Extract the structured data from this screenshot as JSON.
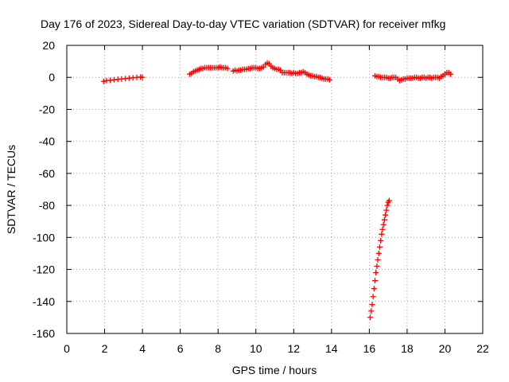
{
  "chart_data": {
    "type": "scatter",
    "title": "Day 176 of 2023, Sidereal Day-to-day VTEC variation (SDTVAR) for receiver mfkg",
    "xlabel": "GPS time / hours",
    "ylabel": "SDTVAR / TECUs",
    "xlim": [
      0,
      22
    ],
    "ylim": [
      -160,
      20
    ],
    "xticks": [
      0,
      2,
      4,
      6,
      8,
      10,
      12,
      14,
      16,
      18,
      20,
      22
    ],
    "yticks": [
      20,
      0,
      -20,
      -40,
      -60,
      -80,
      -100,
      -120,
      -140,
      -160
    ],
    "grid": true,
    "legend": "none",
    "marker": "+",
    "color": "#ff0000",
    "series": [
      {
        "name": "SDTVAR",
        "segments": [
          {
            "x": [
              1.95,
              2.1,
              2.3,
              2.5,
              2.7,
              2.9,
              3.1,
              3.3,
              3.5,
              3.7,
              3.9,
              4.0
            ],
            "y": [
              -2.5,
              -2,
              -1.8,
              -1.5,
              -1.2,
              -1,
              -0.8,
              -0.5,
              -0.3,
              0,
              0.2,
              0
            ]
          },
          {
            "x": [
              6.5,
              6.6,
              6.7,
              6.8,
              6.9,
              7.0,
              7.1,
              7.2,
              7.3,
              7.4,
              7.5,
              7.6,
              7.7,
              7.8,
              7.9,
              8.0,
              8.1,
              8.2,
              8.3,
              8.4,
              8.5
            ],
            "y": [
              2,
              2.5,
              3.5,
              4,
              4.5,
              5,
              5.5,
              5.5,
              6,
              6,
              6,
              6,
              6,
              6,
              6,
              6,
              6.5,
              6,
              6,
              6,
              5.5
            ]
          },
          {
            "x": [
              8.8,
              8.9,
              9.0,
              9.1,
              9.2,
              9.3,
              9.4,
              9.5,
              9.6,
              9.7,
              9.8,
              9.9,
              10.0,
              10.1,
              10.2,
              10.3,
              10.4,
              10.5,
              10.6,
              10.7,
              10.8,
              10.9,
              11.0,
              11.1,
              11.2,
              11.3,
              11.4,
              11.5,
              11.6,
              11.7,
              11.8,
              11.9,
              12.0,
              12.1,
              12.2,
              12.3,
              12.4,
              12.5,
              12.6,
              12.7,
              12.8,
              12.9,
              13.0,
              13.1,
              13.2,
              13.3,
              13.4,
              13.5,
              13.6,
              13.7,
              13.8,
              13.9
            ],
            "y": [
              4,
              4.5,
              4,
              4.5,
              4.5,
              5,
              5,
              5,
              5.5,
              5.5,
              6,
              6,
              6,
              5.5,
              5.5,
              6,
              6.5,
              8,
              9,
              8.5,
              7,
              6,
              5.5,
              5,
              5,
              4.5,
              3,
              3,
              3,
              3,
              3,
              2.5,
              3,
              2.5,
              2.5,
              3,
              3,
              3.5,
              3,
              2,
              1.5,
              1,
              1,
              0.5,
              0.5,
              0,
              0,
              -0.5,
              -1,
              -1,
              -1,
              -1.5
            ]
          },
          {
            "x": [
              16.3,
              16.4,
              16.5,
              16.6,
              16.7,
              16.8,
              16.9,
              17.0,
              17.1,
              17.2,
              17.3,
              17.4,
              17.5,
              17.6,
              17.7,
              17.8,
              17.9,
              18.0,
              18.1,
              18.2,
              18.3,
              18.4,
              18.5,
              18.6,
              18.7,
              18.8,
              18.9,
              19.0,
              19.1,
              19.2,
              19.3,
              19.4,
              19.5,
              19.6,
              19.7,
              19.8,
              19.9,
              20.0,
              20.1,
              20.2,
              20.3
            ],
            "y": [
              1,
              0.5,
              0.5,
              0,
              0,
              0,
              0,
              -0.5,
              -0.5,
              0,
              0,
              0,
              -1,
              -2,
              -1.5,
              -1,
              -1,
              -0.5,
              -0.5,
              -0.5,
              -0.5,
              0,
              0,
              -0.5,
              -0.5,
              0,
              0,
              -0.5,
              0,
              0,
              -0.5,
              0,
              0,
              0,
              -0.5,
              0.5,
              1,
              2,
              3,
              3,
              2
            ]
          },
          {
            "x": [
              16.05,
              16.1,
              16.15,
              16.2,
              16.25,
              16.3,
              16.35,
              16.4,
              16.45,
              16.5,
              16.55,
              16.6,
              16.65,
              16.7,
              16.75,
              16.8,
              16.85,
              16.9,
              16.95,
              17.0,
              17.05
            ],
            "y": [
              -150,
              -146,
              -142,
              -137,
              -132,
              -127,
              -122,
              -118,
              -114,
              -110,
              -106,
              -102,
              -98,
              -95,
              -92,
              -89,
              -86,
              -83,
              -80,
              -78,
              -77
            ]
          }
        ]
      }
    ]
  }
}
